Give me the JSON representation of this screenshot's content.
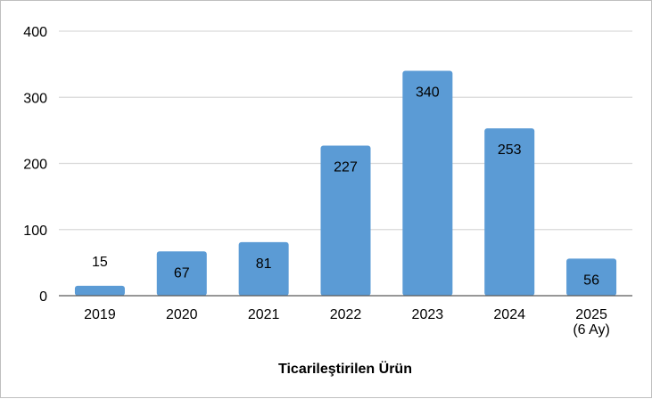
{
  "chart_data": {
    "type": "bar",
    "categories": [
      "2019",
      "2020",
      "2021",
      "2022",
      "2023",
      "2024",
      "2025\n(6 Ay)"
    ],
    "values": [
      15,
      67,
      81,
      227,
      340,
      253,
      56
    ],
    "data_labels": [
      "15",
      "67",
      "81",
      "227",
      "340",
      "253",
      "56"
    ],
    "yticks": [
      "0",
      "100",
      "200",
      "300",
      "400"
    ],
    "ylim": [
      0,
      400
    ],
    "xlabel": "Ticarileştirilen Ürün",
    "ylabel": "",
    "title": "",
    "grid": true,
    "legend": "none",
    "bar_color": "#5b9bd5",
    "grid_color": "#d9d9d9",
    "axis_color": "#595959"
  }
}
